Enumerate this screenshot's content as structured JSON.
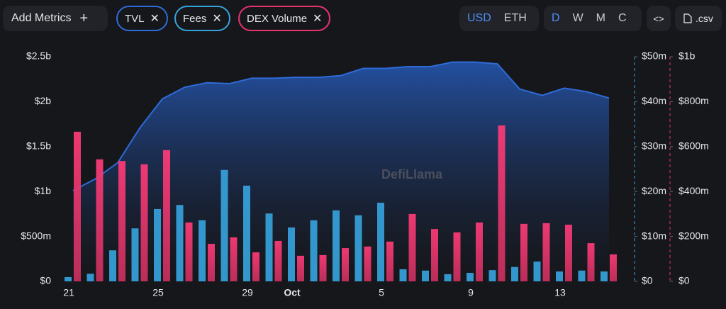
{
  "toolbar": {
    "add_metrics": "Add Metrics",
    "currency": [
      "USD",
      "ETH"
    ],
    "periods": [
      "D",
      "W",
      "M",
      "C"
    ],
    "csv": ".csv"
  },
  "chart_data": {
    "type": "combo",
    "watermark": "DefiLlama",
    "categories": [
      "21",
      null,
      null,
      null,
      "25",
      null,
      null,
      null,
      "29",
      null,
      "Oct",
      null,
      null,
      null,
      "5",
      null,
      null,
      null,
      "9",
      null,
      null,
      null,
      "13",
      null,
      null
    ],
    "series": [
      {
        "name": "TVL",
        "type": "area",
        "axis": "y",
        "color": "#2f6bd8",
        "values": [
          1010000000,
          1140000000,
          1320000000,
          1710000000,
          2030000000,
          2160000000,
          2210000000,
          2200000000,
          2260000000,
          2260000000,
          2270000000,
          2270000000,
          2290000000,
          2370000000,
          2370000000,
          2390000000,
          2390000000,
          2440000000,
          2440000000,
          2420000000,
          2140000000,
          2070000000,
          2150000000,
          2110000000,
          2040000000
        ]
      },
      {
        "name": "Fees",
        "type": "bar",
        "axis": "y2",
        "color": "#36a2db",
        "values": [
          950000,
          1700000,
          6900000,
          11800000,
          16100000,
          17000000,
          13600000,
          24800000,
          21300000,
          15100000,
          12000000,
          13600000,
          15800000,
          14700000,
          17500000,
          2700000,
          2400000,
          1600000,
          1900000,
          2500000,
          3200000,
          4400000,
          2200000,
          2400000,
          2200000
        ]
      },
      {
        "name": "DEX Volume",
        "type": "bar",
        "axis": "y3",
        "color": "#e8336d",
        "values": [
          666000000,
          543000000,
          536000000,
          521000000,
          584000000,
          262000000,
          167000000,
          196000000,
          129000000,
          180000000,
          114000000,
          117000000,
          148000000,
          155000000,
          177000000,
          300000000,
          233000000,
          218000000,
          262000000,
          694000000,
          256000000,
          259000000,
          252000000,
          170000000,
          120000000
        ]
      }
    ],
    "ylim": [
      0,
      2500000000
    ],
    "yticks": [
      {
        "value": 0,
        "label": "$0"
      },
      {
        "value": 500000000,
        "label": "$500m"
      },
      {
        "value": 1000000000,
        "label": "$1b"
      },
      {
        "value": 1500000000,
        "label": "$1.5b"
      },
      {
        "value": 2000000000,
        "label": "$2b"
      },
      {
        "value": 2500000000,
        "label": "$2.5b"
      }
    ],
    "y2lim": [
      0,
      50000000
    ],
    "y2ticks": [
      {
        "value": 0,
        "label": "$0"
      },
      {
        "value": 10000000,
        "label": "$10m"
      },
      {
        "value": 20000000,
        "label": "$20m"
      },
      {
        "value": 30000000,
        "label": "$30m"
      },
      {
        "value": 40000000,
        "label": "$40m"
      },
      {
        "value": 50000000,
        "label": "$50m"
      }
    ],
    "y3lim": [
      0,
      1000000000
    ],
    "y3ticks": [
      {
        "value": 0,
        "label": "$0"
      },
      {
        "value": 200000000,
        "label": "$200m"
      },
      {
        "value": 400000000,
        "label": "$400m"
      },
      {
        "value": 600000000,
        "label": "$600m"
      },
      {
        "value": 800000000,
        "label": "$800m"
      },
      {
        "value": 1000000000,
        "label": "$1b"
      }
    ],
    "grid": false
  }
}
